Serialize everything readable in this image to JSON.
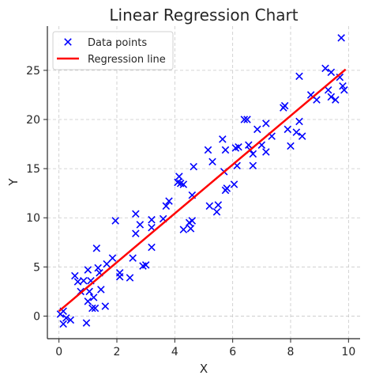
{
  "chart_data": {
    "type": "scatter",
    "title": "Linear Regression Chart",
    "xlabel": "X",
    "ylabel": "Y",
    "xlim": [
      -0.4,
      10.4
    ],
    "ylim": [
      -2.3,
      29.5
    ],
    "xticks": [
      0,
      2,
      4,
      6,
      8,
      10
    ],
    "yticks": [
      0,
      5,
      10,
      15,
      20,
      25
    ],
    "grid": true,
    "legend_position": "top-left",
    "series": [
      {
        "name": "Data points",
        "kind": "scatter",
        "marker": "x",
        "color": "#0000ff",
        "points": [
          [
            0.05,
            0.2
          ],
          [
            0.15,
            -0.8
          ],
          [
            0.25,
            -0.2
          ],
          [
            0.15,
            0.5
          ],
          [
            0.4,
            -0.4
          ],
          [
            0.55,
            4.1
          ],
          [
            0.65,
            3.5
          ],
          [
            0.75,
            2.5
          ],
          [
            0.85,
            3.6
          ],
          [
            0.95,
            -0.7
          ],
          [
            1.0,
            1.5
          ],
          [
            1.0,
            4.7
          ],
          [
            1.1,
            3.6
          ],
          [
            1.05,
            2.5
          ],
          [
            1.15,
            0.8
          ],
          [
            1.2,
            1.9
          ],
          [
            1.25,
            0.8
          ],
          [
            1.3,
            6.9
          ],
          [
            1.35,
            4.9
          ],
          [
            1.4,
            4.4
          ],
          [
            1.45,
            2.7
          ],
          [
            1.6,
            1.0
          ],
          [
            1.65,
            5.3
          ],
          [
            1.85,
            5.9
          ],
          [
            1.95,
            9.7
          ],
          [
            2.1,
            4.0
          ],
          [
            2.1,
            4.4
          ],
          [
            2.45,
            3.9
          ],
          [
            2.55,
            5.9
          ],
          [
            2.65,
            10.4
          ],
          [
            2.65,
            8.4
          ],
          [
            2.8,
            9.3
          ],
          [
            2.9,
            5.1
          ],
          [
            3.0,
            5.2
          ],
          [
            3.2,
            7.0
          ],
          [
            3.2,
            9.8
          ],
          [
            3.2,
            9.0
          ],
          [
            3.6,
            9.9
          ],
          [
            3.7,
            11.2
          ],
          [
            3.8,
            11.7
          ],
          [
            4.1,
            13.6
          ],
          [
            4.15,
            14.2
          ],
          [
            4.2,
            13.5
          ],
          [
            4.3,
            13.4
          ],
          [
            4.3,
            8.8
          ],
          [
            4.5,
            9.5
          ],
          [
            4.55,
            8.9
          ],
          [
            4.6,
            9.7
          ],
          [
            4.65,
            15.2
          ],
          [
            4.6,
            12.3
          ],
          [
            5.15,
            16.9
          ],
          [
            5.2,
            11.2
          ],
          [
            5.3,
            15.7
          ],
          [
            5.45,
            10.6
          ],
          [
            5.5,
            11.3
          ],
          [
            5.65,
            18.0
          ],
          [
            5.75,
            16.9
          ],
          [
            5.7,
            14.7
          ],
          [
            5.8,
            13.0
          ],
          [
            5.75,
            12.8
          ],
          [
            6.05,
            13.4
          ],
          [
            6.1,
            17.1
          ],
          [
            6.15,
            15.3
          ],
          [
            6.2,
            17.2
          ],
          [
            6.4,
            20.0
          ],
          [
            6.5,
            20.0
          ],
          [
            6.55,
            17.4
          ],
          [
            6.6,
            16.9
          ],
          [
            6.7,
            16.5
          ],
          [
            6.7,
            15.3
          ],
          [
            6.85,
            19.0
          ],
          [
            7.0,
            17.4
          ],
          [
            7.15,
            19.6
          ],
          [
            7.15,
            16.7
          ],
          [
            7.35,
            18.3
          ],
          [
            7.75,
            21.2
          ],
          [
            7.8,
            21.4
          ],
          [
            7.9,
            19.0
          ],
          [
            8.0,
            17.3
          ],
          [
            8.2,
            18.7
          ],
          [
            8.3,
            19.8
          ],
          [
            8.3,
            24.4
          ],
          [
            8.4,
            18.3
          ],
          [
            8.7,
            22.5
          ],
          [
            8.9,
            22.0
          ],
          [
            9.2,
            25.2
          ],
          [
            9.3,
            23.0
          ],
          [
            9.4,
            24.8
          ],
          [
            9.4,
            22.3
          ],
          [
            9.55,
            22.0
          ],
          [
            9.7,
            24.3
          ],
          [
            9.75,
            28.3
          ],
          [
            9.8,
            23.4
          ],
          [
            9.85,
            23.0
          ]
        ]
      },
      {
        "name": "Regression line",
        "kind": "line",
        "color": "#ff0000",
        "x": [
          0,
          9.9
        ],
        "y": [
          0.5,
          25.1
        ]
      }
    ]
  }
}
